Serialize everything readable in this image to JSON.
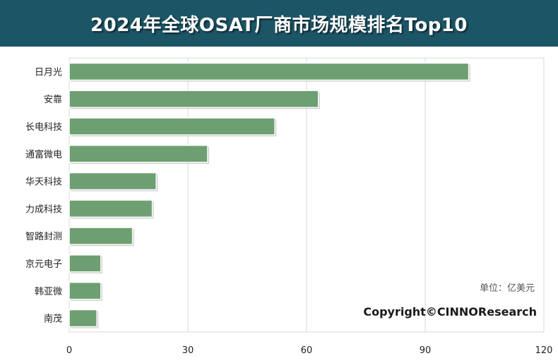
{
  "title": "2024年全球OSAT厂商市场规模排名Top10",
  "unit_note": "单位：亿美元",
  "copyright": "Copyright©CINNOResearch",
  "colors": {
    "title_bg": "#1c5566",
    "bar": "#6e9f72",
    "grid": "#d9d9d9"
  },
  "chart_data": {
    "type": "bar",
    "orientation": "horizontal",
    "categories": [
      "日月光",
      "安靠",
      "长电科技",
      "通富微电",
      "华天科技",
      "力成科技",
      "智路封测",
      "京元电子",
      "韩亚微",
      "南茂"
    ],
    "values": [
      101,
      63,
      52,
      35,
      22,
      21,
      16,
      8,
      8,
      7
    ],
    "xlim": [
      0,
      120
    ],
    "xticks": [
      0,
      30,
      60,
      90,
      120
    ],
    "grid": true,
    "title": "2024年全球OSAT厂商市场规模排名Top10"
  }
}
